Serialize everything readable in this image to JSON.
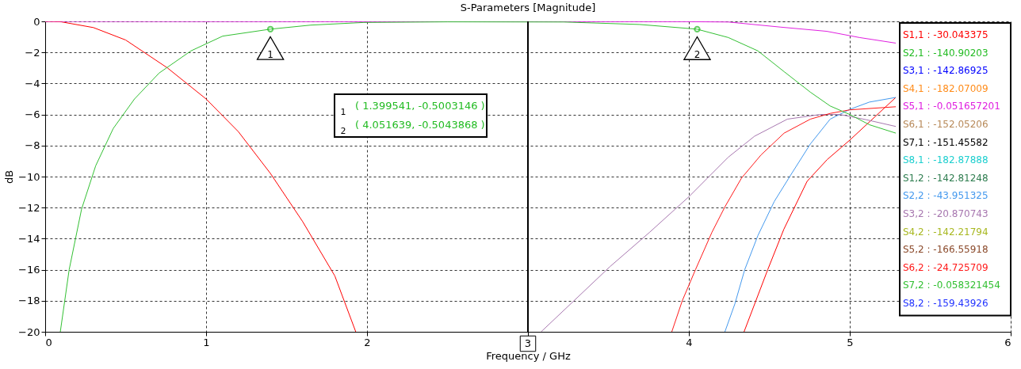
{
  "chart_data": {
    "type": "line",
    "title": "S-Parameters [Magnitude]",
    "xlabel": "Frequency / GHz",
    "ylabel": "dB",
    "xlim": [
      0,
      6
    ],
    "xticks": [
      0,
      1,
      2,
      3,
      4,
      5,
      6
    ],
    "ylim": [
      -20,
      0
    ],
    "yticks": [
      0,
      -2,
      -4,
      -6,
      -8,
      -10,
      -12,
      -14,
      -16,
      -18,
      -20
    ],
    "grid": true,
    "legend": "top right",
    "line_style": "solid",
    "marker": "none",
    "series": [
      {
        "name": "S1,1 : -30.043375",
        "color": "#ff0000",
        "x": [
          0,
          0.1,
          0.3,
          0.5,
          0.76,
          1.0,
          1.2,
          1.4,
          1.6,
          1.8,
          1.93,
          null,
          4.343,
          4.49,
          4.59,
          4.735,
          4.86,
          5.0,
          5.286
        ],
        "values": [
          0,
          -0.03,
          -0.4,
          -1.2,
          -3.0,
          -5.0,
          -7.1,
          -9.8,
          -12.9,
          -16.4,
          -20,
          null,
          -20,
          -16.0,
          -13.4,
          -10.3,
          -8.9,
          -7.65,
          -4.9
        ]
      },
      {
        "name": "S2,1 : -140.90203",
        "color": "#22bb22"
      },
      {
        "name": "S3,1 : -142.86925",
        "color": "#0000ff"
      },
      {
        "name": "S4,1 : -182.07009",
        "color": "#ff8c1a"
      },
      {
        "name": "S5,1 : -0.051657201",
        "color": "#e020e0",
        "x": [
          0,
          1,
          2,
          4.0,
          4.245,
          4.571,
          4.857,
          5.06,
          5.286
        ],
        "values": [
          0,
          -0.01,
          -0.02,
          -0.02,
          -0.04,
          -0.37,
          -0.64,
          -1.04,
          -1.4
        ]
      },
      {
        "name": "S6,1 : -152.05206",
        "color": "#b88a5a"
      },
      {
        "name": "S7,1 : -151.45582",
        "color": "#000000"
      },
      {
        "name": "S8,1 : -182.87888",
        "color": "#1ccfcf"
      },
      {
        "name": "S1,2 : -142.81248",
        "color": "#2e7d4f"
      },
      {
        "name": "S2,2 : -43.951325",
        "color": "#4499ee",
        "x": [
          4.224,
          4.286,
          4.347,
          4.429,
          4.531,
          4.633,
          4.755,
          4.878,
          5.0,
          5.122,
          5.286
        ],
        "values": [
          -20,
          -18.2,
          -16.0,
          -13.8,
          -11.6,
          -9.9,
          -7.9,
          -6.3,
          -5.67,
          -5.2,
          -4.9
        ]
      },
      {
        "name": "S3,2 : -20.870743",
        "color": "#a878b0",
        "x": [
          3.082,
          3.286,
          3.51,
          3.755,
          4.0,
          4.245,
          4.408,
          4.612,
          4.816,
          4.939,
          5.1,
          5.286
        ],
        "values": [
          -20,
          -18.0,
          -15.8,
          -13.6,
          -11.3,
          -8.75,
          -7.4,
          -6.3,
          -6.0,
          -6.0,
          -6.33,
          -6.77
        ]
      },
      {
        "name": "S4,2 : -142.21794",
        "color": "#a8b820"
      },
      {
        "name": "S5,2 : -166.55918",
        "color": "#8b4a2b"
      },
      {
        "name": "S6,2 : -24.725709",
        "color": "#ff1a1a",
        "x": [
          3.894,
          3.959,
          4.041,
          4.143,
          4.224,
          4.327,
          4.449,
          4.592,
          4.755,
          4.878,
          5.0,
          5.286
        ],
        "values": [
          -20,
          -18.0,
          -16.0,
          -13.6,
          -11.95,
          -10.1,
          -8.6,
          -7.2,
          -6.3,
          -5.93,
          -5.7,
          -5.5
        ]
      },
      {
        "name": "S7,2 : -0.058321454",
        "color": "#33c033",
        "x": [
          0.094,
          0.149,
          0.226,
          0.314,
          0.423,
          0.555,
          0.708,
          0.906,
          1.103,
          1.4,
          1.65,
          1.98,
          2.5,
          3.224,
          3.694,
          4.05,
          4.245,
          4.429,
          4.592,
          4.755,
          4.878,
          5.0,
          5.122,
          5.286
        ],
        "values": [
          -20,
          -16.0,
          -12.1,
          -9.3,
          -6.9,
          -5.0,
          -3.33,
          -1.9,
          -0.95,
          -0.5,
          -0.24,
          -0.07,
          -0.03,
          -0.04,
          -0.2,
          -0.5,
          -1.04,
          -1.9,
          -3.24,
          -4.56,
          -5.45,
          -6.0,
          -6.66,
          -7.2
        ]
      },
      {
        "name": "S8,2 : -159.43926",
        "color": "#2233ff"
      }
    ],
    "ref_lines": [
      {
        "axis": "x",
        "value": 3,
        "label": "3",
        "color": "#000000"
      }
    ],
    "annotations": [
      {
        "text": "1",
        "x": 1.399541,
        "y": -0.5003146
      },
      {
        "text": "2",
        "x": 4.051639,
        "y": -0.5043868
      },
      "( 1.399541, -0.5003146 )",
      "( 4.051639, -0.5043868 )"
    ]
  }
}
